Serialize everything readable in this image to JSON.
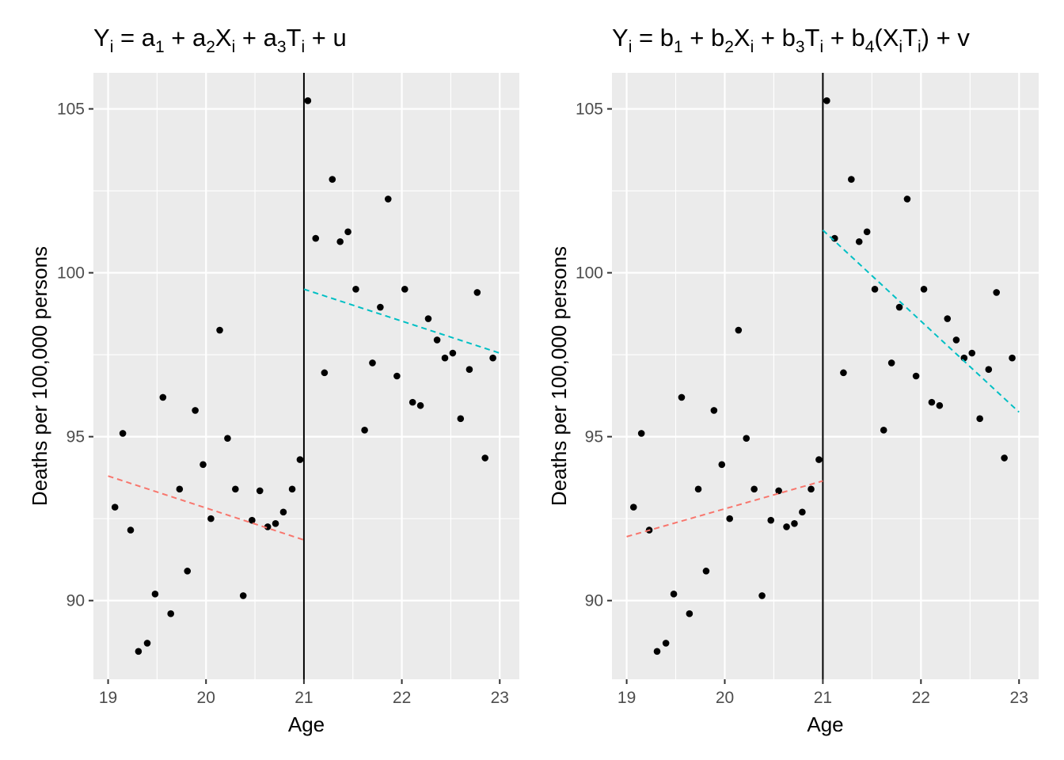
{
  "chart_data": [
    {
      "type": "scatter",
      "title": "Y_i = a_1 + a_2X_i + a_3T_i + u",
      "title_parts": [
        {
          "t": "Y",
          "s": "n"
        },
        {
          "t": "i",
          "s": "sub"
        },
        {
          "t": " = a",
          "s": "n"
        },
        {
          "t": "1",
          "s": "sub"
        },
        {
          "t": " + a",
          "s": "n"
        },
        {
          "t": "2",
          "s": "sub"
        },
        {
          "t": "X",
          "s": "n"
        },
        {
          "t": "i",
          "s": "sub"
        },
        {
          "t": " + a",
          "s": "n"
        },
        {
          "t": "3",
          "s": "sub"
        },
        {
          "t": "T",
          "s": "n"
        },
        {
          "t": "i",
          "s": "sub"
        },
        {
          "t": " + u",
          "s": "n"
        }
      ],
      "xlabel": "Age",
      "ylabel": "Deaths per 100,000 persons",
      "xlim": [
        18.85,
        23.2
      ],
      "ylim": [
        87.6,
        106.1
      ],
      "x_ticks": [
        19,
        20,
        21,
        22,
        23
      ],
      "y_ticks": [
        90,
        95,
        100,
        105
      ],
      "grid": true,
      "cutoff_x": 21,
      "fit_lines": [
        {
          "color": "#F8766D",
          "x": [
            19,
            21
          ],
          "y": [
            93.8,
            91.85
          ]
        },
        {
          "color": "#00BFC4",
          "x": [
            21,
            23
          ],
          "y": [
            99.5,
            97.55
          ]
        }
      ]
    },
    {
      "type": "scatter",
      "title": "Y_i = b_1 + b_2X_i + b_3T_i + b_4(X_iT_i) + v",
      "title_parts": [
        {
          "t": "Y",
          "s": "n"
        },
        {
          "t": "i",
          "s": "sub"
        },
        {
          "t": " = b",
          "s": "n"
        },
        {
          "t": "1",
          "s": "sub"
        },
        {
          "t": " + b",
          "s": "n"
        },
        {
          "t": "2",
          "s": "sub"
        },
        {
          "t": "X",
          "s": "n"
        },
        {
          "t": "i",
          "s": "sub"
        },
        {
          "t": " + b",
          "s": "n"
        },
        {
          "t": "3",
          "s": "sub"
        },
        {
          "t": "T",
          "s": "n"
        },
        {
          "t": "i",
          "s": "sub"
        },
        {
          "t": " + b",
          "s": "n"
        },
        {
          "t": "4",
          "s": "sub"
        },
        {
          "t": "(X",
          "s": "n"
        },
        {
          "t": "i",
          "s": "sub"
        },
        {
          "t": "T",
          "s": "n"
        },
        {
          "t": "i",
          "s": "sub"
        },
        {
          "t": ") + v",
          "s": "n"
        }
      ],
      "xlabel": "Age",
      "ylabel": "Deaths per 100,000 persons",
      "xlim": [
        18.85,
        23.2
      ],
      "ylim": [
        87.6,
        106.1
      ],
      "x_ticks": [
        19,
        20,
        21,
        22,
        23
      ],
      "y_ticks": [
        90,
        95,
        100,
        105
      ],
      "grid": true,
      "cutoff_x": 21,
      "fit_lines": [
        {
          "color": "#F8766D",
          "x": [
            19,
            21
          ],
          "y": [
            91.95,
            93.65
          ]
        },
        {
          "color": "#00BFC4",
          "x": [
            21,
            23
          ],
          "y": [
            101.3,
            95.75
          ]
        }
      ]
    }
  ],
  "points": {
    "x": [
      19.07,
      19.15,
      19.23,
      19.31,
      19.4,
      19.48,
      19.56,
      19.64,
      19.73,
      19.81,
      19.89,
      19.97,
      20.05,
      20.14,
      20.22,
      20.3,
      20.38,
      20.47,
      20.55,
      20.63,
      20.71,
      20.79,
      20.88,
      20.96,
      21.04,
      21.12,
      21.21,
      21.29,
      21.37,
      21.45,
      21.53,
      21.62,
      21.7,
      21.78,
      21.86,
      21.95,
      22.03,
      22.11,
      22.19,
      22.27,
      22.36,
      22.44,
      22.52,
      22.6,
      22.69,
      22.77,
      22.85,
      22.93
    ],
    "y": [
      92.85,
      95.1,
      92.15,
      88.45,
      88.7,
      90.2,
      96.2,
      89.6,
      93.4,
      90.9,
      95.8,
      94.15,
      92.5,
      98.25,
      94.95,
      93.4,
      90.15,
      92.45,
      93.35,
      92.25,
      92.35,
      92.7,
      93.4,
      94.3,
      105.25,
      101.05,
      96.95,
      102.85,
      100.95,
      101.25,
      99.5,
      95.2,
      97.25,
      98.95,
      102.25,
      96.85,
      99.5,
      96.05,
      95.95,
      98.6,
      97.95,
      97.4,
      97.55,
      95.55,
      97.05,
      99.4,
      94.35,
      97.4
    ]
  }
}
